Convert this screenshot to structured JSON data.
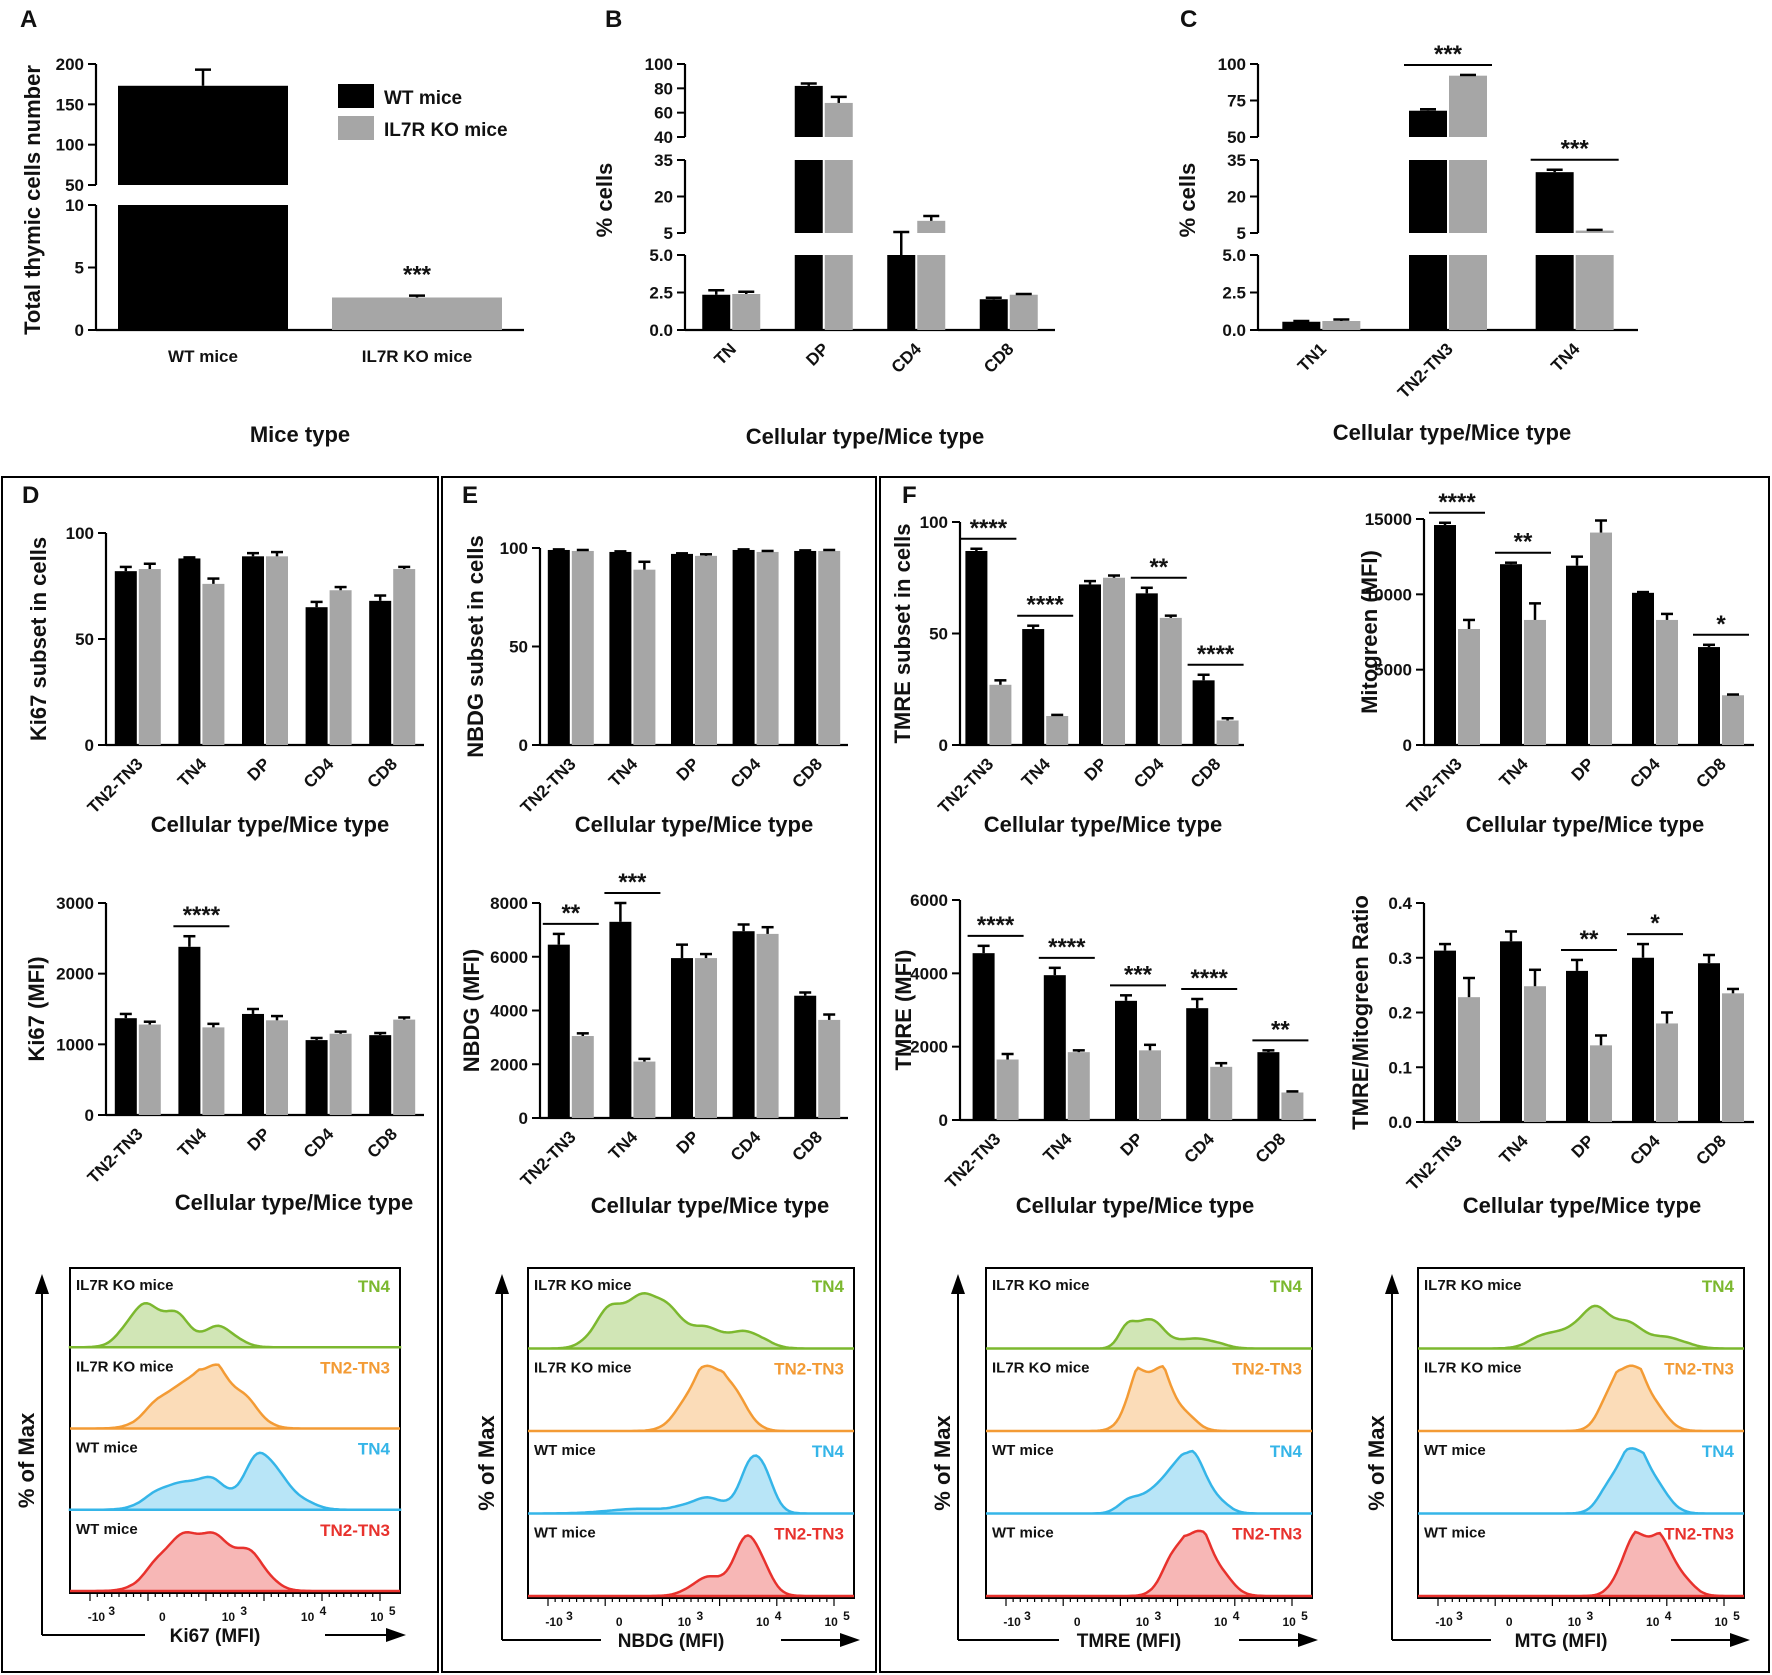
{
  "legend": {
    "wt": "WT mice",
    "ko": "IL7R KO mice"
  },
  "colors": {
    "wt": "#000000",
    "ko": "#a6a6a6",
    "tn4_ko": "#7cb82f",
    "tn23_ko": "#f39b35",
    "tn4_wt": "#35b5e8",
    "tn23_wt": "#e8322d"
  },
  "panel_labels": [
    "A",
    "B",
    "C",
    "D",
    "E",
    "F"
  ],
  "chart_data": [
    {
      "id": "A",
      "type": "bar",
      "title": "",
      "ylabel": "Total thymic cells number",
      "xlabel": "Mice type",
      "categories": [
        "WT mice",
        "IL7R KO mice"
      ],
      "broken_axis": true,
      "y_ticks": [
        "0",
        "5",
        "10",
        "50",
        "100",
        "150",
        "200"
      ],
      "series": [
        {
          "name": "WT mice",
          "values": [
            173,
            null
          ],
          "errors": [
            20,
            null
          ]
        },
        {
          "name": "IL7R KO mice",
          "values": [
            null,
            2.6
          ],
          "errors": [
            null,
            0.15
          ]
        }
      ],
      "annotations": [
        {
          "text": "***",
          "category": "IL7R KO mice"
        }
      ]
    },
    {
      "id": "B",
      "type": "bar",
      "ylabel": "% cells",
      "xlabel": "Cellular type/Mice type",
      "categories": [
        "TN",
        "DP",
        "CD4",
        "CD8"
      ],
      "broken_axis": true,
      "y_ticks": [
        "0.0",
        "2.5",
        "5.0",
        "5",
        "20",
        "35",
        "40",
        "60",
        "80",
        "100"
      ],
      "series": [
        {
          "name": "WT mice",
          "values": [
            2.35,
            82,
            5,
            2.05
          ],
          "errors": [
            0.3,
            2,
            0.4,
            0.1
          ]
        },
        {
          "name": "IL7R KO mice",
          "values": [
            2.4,
            68,
            10,
            2.35
          ],
          "errors": [
            0.15,
            5,
            2,
            0.05
          ]
        }
      ]
    },
    {
      "id": "C",
      "type": "bar",
      "ylabel": "% cells",
      "xlabel": "Cellular type/Mice type",
      "categories": [
        "TN1",
        "TN2-TN3",
        "TN4"
      ],
      "broken_axis": true,
      "y_ticks": [
        "0.0",
        "2.5",
        "5.0",
        "5",
        "20",
        "35",
        "50",
        "75",
        "100"
      ],
      "series": [
        {
          "name": "WT mice",
          "values": [
            0.55,
            68,
            30
          ],
          "errors": [
            0.05,
            1,
            1
          ]
        },
        {
          "name": "IL7R KO mice",
          "values": [
            0.6,
            92,
            6
          ],
          "errors": [
            0.1,
            0.5,
            0.3
          ]
        }
      ],
      "annotations": [
        {
          "text": "***",
          "category": "TN2-TN3"
        },
        {
          "text": "***",
          "category": "TN4"
        }
      ]
    },
    {
      "id": "D1",
      "type": "bar",
      "ylabel": "Ki67 subset in cells",
      "xlabel": "Cellular type/Mice type",
      "categories": [
        "TN2-TN3",
        "TN4",
        "DP",
        "CD4",
        "CD8"
      ],
      "ylim": [
        0,
        100
      ],
      "y_ticks": [
        "0",
        "50",
        "100"
      ],
      "series": [
        {
          "name": "WT mice",
          "values": [
            82,
            88,
            89,
            65,
            68
          ],
          "errors": [
            2,
            0.5,
            1.5,
            2.5,
            2.5
          ]
        },
        {
          "name": "IL7R KO mice",
          "values": [
            83,
            76,
            89,
            73,
            83
          ],
          "errors": [
            2.5,
            2.5,
            2,
            1.5,
            1
          ]
        }
      ]
    },
    {
      "id": "D2",
      "type": "bar",
      "ylabel": "Ki67 (MFI)",
      "xlabel": "Cellular type/Mice type",
      "categories": [
        "TN2-TN3",
        "TN4",
        "DP",
        "CD4",
        "CD8"
      ],
      "ylim": [
        0,
        3000
      ],
      "y_ticks": [
        "0",
        "1000",
        "2000",
        "3000"
      ],
      "series": [
        {
          "name": "WT mice",
          "values": [
            1370,
            2380,
            1430,
            1060,
            1130
          ],
          "errors": [
            60,
            150,
            70,
            30,
            30
          ]
        },
        {
          "name": "IL7R KO mice",
          "values": [
            1280,
            1240,
            1340,
            1150,
            1350
          ],
          "errors": [
            40,
            50,
            60,
            30,
            30
          ]
        }
      ],
      "annotations": [
        {
          "text": "****",
          "category": "TN4"
        }
      ]
    },
    {
      "id": "E1",
      "type": "bar",
      "ylabel": "NBDG subset in cells",
      "xlabel": "Cellular type/Mice type",
      "categories": [
        "TN2-TN3",
        "TN4",
        "DP",
        "CD4",
        "CD8"
      ],
      "ylim": [
        0,
        100
      ],
      "y_ticks": [
        "0",
        "50",
        "100"
      ],
      "series": [
        {
          "name": "WT mice",
          "values": [
            99,
            98,
            97,
            99,
            98.5
          ],
          "errors": [
            0.3,
            0.3,
            0.3,
            0.3,
            0.3
          ]
        },
        {
          "name": "IL7R KO mice",
          "values": [
            98.5,
            89,
            96,
            98,
            98.5
          ],
          "errors": [
            0.5,
            4,
            0.8,
            0.5,
            0.5
          ]
        }
      ]
    },
    {
      "id": "E2",
      "type": "bar",
      "ylabel": "NBDG (MFI)",
      "xlabel": "Cellular type/Mice type",
      "categories": [
        "TN2-TN3",
        "TN4",
        "DP",
        "CD4",
        "CD8"
      ],
      "ylim": [
        0,
        8000
      ],
      "y_ticks": [
        "0",
        "2000",
        "4000",
        "6000",
        "8000"
      ],
      "series": [
        {
          "name": "WT mice",
          "values": [
            6450,
            7300,
            5950,
            6950,
            4550
          ],
          "errors": [
            400,
            700,
            500,
            250,
            120
          ]
        },
        {
          "name": "IL7R KO mice",
          "values": [
            3050,
            2100,
            5950,
            6850,
            3650
          ],
          "errors": [
            100,
            100,
            150,
            250,
            200
          ]
        }
      ],
      "annotations": [
        {
          "text": "**",
          "category": "TN2-TN3"
        },
        {
          "text": "***",
          "category": "TN4"
        }
      ]
    },
    {
      "id": "F1",
      "type": "bar",
      "ylabel": "TMRE subset in cells",
      "xlabel": "Cellular type/Mice type",
      "categories": [
        "TN2-TN3",
        "TN4",
        "DP",
        "CD4",
        "CD8"
      ],
      "ylim": [
        0,
        100
      ],
      "y_ticks": [
        "0",
        "50",
        "100"
      ],
      "series": [
        {
          "name": "WT mice",
          "values": [
            87,
            52,
            72,
            68,
            29
          ],
          "errors": [
            1,
            1.5,
            1.5,
            2.5,
            2.5
          ]
        },
        {
          "name": "IL7R KO mice",
          "values": [
            27,
            13,
            75,
            57,
            11
          ],
          "errors": [
            2,
            0.5,
            1,
            1,
            1
          ]
        }
      ],
      "annotations": [
        {
          "text": "****",
          "category": "TN2-TN3"
        },
        {
          "text": "****",
          "category": "TN4"
        },
        {
          "text": "**",
          "category": "CD4"
        },
        {
          "text": "****",
          "category": "CD8"
        }
      ]
    },
    {
      "id": "F2",
      "type": "bar",
      "ylabel": "Mitogreen (MFI)",
      "xlabel": "Cellular type/Mice type",
      "categories": [
        "TN2-TN3",
        "TN4",
        "DP",
        "CD4",
        "CD8"
      ],
      "ylim": [
        0,
        15000
      ],
      "y_ticks": [
        "0",
        "5000",
        "10000",
        "15000"
      ],
      "series": [
        {
          "name": "WT mice",
          "values": [
            14600,
            12000,
            11900,
            10100,
            6500
          ],
          "errors": [
            150,
            100,
            600,
            50,
            150
          ]
        },
        {
          "name": "IL7R KO mice",
          "values": [
            7700,
            8300,
            14100,
            8300,
            3300
          ],
          "errors": [
            600,
            1100,
            800,
            400,
            50
          ]
        }
      ],
      "annotations": [
        {
          "text": "****",
          "category": "TN2-TN3"
        },
        {
          "text": "**",
          "category": "TN4"
        },
        {
          "text": "*",
          "category": "CD8"
        }
      ]
    },
    {
      "id": "F3",
      "type": "bar",
      "ylabel": "TMRE (MFI)",
      "xlabel": "Cellular type/Mice type",
      "categories": [
        "TN2-TN3",
        "TN4",
        "DP",
        "CD4",
        "CD8"
      ],
      "ylim": [
        0,
        6000
      ],
      "y_ticks": [
        "0",
        "2000",
        "4000",
        "6000"
      ],
      "series": [
        {
          "name": "WT mice",
          "values": [
            4550,
            3950,
            3250,
            3050,
            1850
          ],
          "errors": [
            200,
            200,
            150,
            250,
            50
          ]
        },
        {
          "name": "IL7R KO mice",
          "values": [
            1650,
            1850,
            1900,
            1450,
            750
          ],
          "errors": [
            150,
            50,
            150,
            100,
            30
          ]
        }
      ],
      "annotations": [
        {
          "text": "****",
          "category": "TN2-TN3"
        },
        {
          "text": "****",
          "category": "TN4"
        },
        {
          "text": "***",
          "category": "DP"
        },
        {
          "text": "****",
          "category": "CD4"
        },
        {
          "text": "**",
          "category": "CD8"
        }
      ]
    },
    {
      "id": "F4",
      "type": "bar",
      "ylabel": "TMRE/Mitogreen Ratio",
      "xlabel": "Cellular type/Mice type",
      "categories": [
        "TN2-TN3",
        "TN4",
        "DP",
        "CD4",
        "CD8"
      ],
      "ylim": [
        0,
        0.4
      ],
      "y_ticks": [
        "0.0",
        "0.1",
        "0.2",
        "0.3",
        "0.4"
      ],
      "series": [
        {
          "name": "WT mice",
          "values": [
            0.313,
            0.33,
            0.276,
            0.3,
            0.29
          ],
          "errors": [
            0.012,
            0.018,
            0.02,
            0.025,
            0.015
          ]
        },
        {
          "name": "IL7R KO mice",
          "values": [
            0.228,
            0.248,
            0.14,
            0.18,
            0.235
          ],
          "errors": [
            0.035,
            0.03,
            0.018,
            0.02,
            0.008
          ]
        }
      ],
      "annotations": [
        {
          "text": "**",
          "category": "DP"
        },
        {
          "text": "*",
          "category": "CD4"
        }
      ]
    }
  ],
  "histograms": [
    {
      "id": "D3",
      "xlabel": "Ki67 (MFI)",
      "ylabel": "% of Max",
      "tracks": [
        {
          "mice": "IL7R KO mice",
          "subset": "TN4",
          "color": "#7cb82f"
        },
        {
          "mice": "IL7R KO mice",
          "subset": "TN2-TN3",
          "color": "#f39b35"
        },
        {
          "mice": "WT mice",
          "subset": "TN4",
          "color": "#35b5e8"
        },
        {
          "mice": "WT mice",
          "subset": "TN2-TN3",
          "color": "#e8322d"
        }
      ]
    },
    {
      "id": "E3",
      "xlabel": "NBDG (MFI)",
      "ylabel": "% of Max",
      "tracks": [
        {
          "mice": "IL7R KO mice",
          "subset": "TN4",
          "color": "#7cb82f"
        },
        {
          "mice": "IL7R KO mice",
          "subset": "TN2-TN3",
          "color": "#f39b35"
        },
        {
          "mice": "WT mice",
          "subset": "TN4",
          "color": "#35b5e8"
        },
        {
          "mice": "WT mice",
          "subset": "TN2-TN3",
          "color": "#e8322d"
        }
      ]
    },
    {
      "id": "F5",
      "xlabel": "TMRE (MFI)",
      "ylabel": "% of Max",
      "tracks": [
        {
          "mice": "IL7R KO mice",
          "subset": "TN4",
          "color": "#7cb82f"
        },
        {
          "mice": "IL7R KO mice",
          "subset": "TN2-TN3",
          "color": "#f39b35"
        },
        {
          "mice": "WT mice",
          "subset": "TN4",
          "color": "#35b5e8"
        },
        {
          "mice": "WT mice",
          "subset": "TN2-TN3",
          "color": "#e8322d"
        }
      ]
    },
    {
      "id": "F6",
      "xlabel": "MTG (MFI)",
      "ylabel": "% of Max",
      "tracks": [
        {
          "mice": "IL7R KO mice",
          "subset": "TN4",
          "color": "#7cb82f"
        },
        {
          "mice": "IL7R KO mice",
          "subset": "TN2-TN3",
          "color": "#f39b35"
        },
        {
          "mice": "WT mice",
          "subset": "TN4",
          "color": "#35b5e8"
        },
        {
          "mice": "WT mice",
          "subset": "TN2-TN3",
          "color": "#e8322d"
        }
      ]
    }
  ],
  "log_ticks": [
    "-10",
    "3",
    "0",
    "10",
    "3",
    "10",
    "4",
    "10",
    "5"
  ]
}
